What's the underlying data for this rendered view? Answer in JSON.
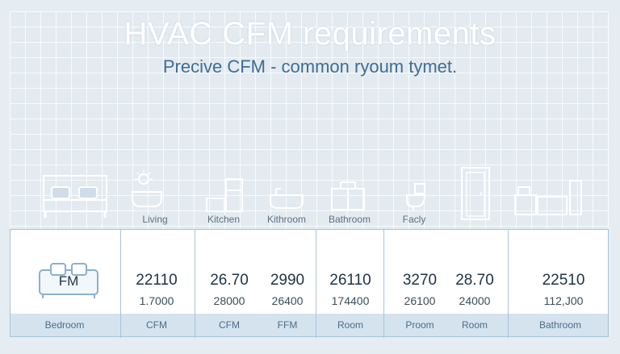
{
  "header": {
    "title": "HVAC CFM  requirements",
    "subtitle": "Precive CFM - common ryoum tymet."
  },
  "icons": [
    {
      "name": "bed-icon",
      "label": ""
    },
    {
      "name": "bathtub-icon",
      "label": "Living"
    },
    {
      "name": "kitchen-icon",
      "label": "Kitchen"
    },
    {
      "name": "bathtub-icon",
      "label": "Kithroom"
    },
    {
      "name": "cabinet-icon",
      "label": "Bathroom"
    },
    {
      "name": "toilet-icon",
      "label": "Facly"
    },
    {
      "name": "door-icon",
      "label": ""
    },
    {
      "name": "office-icon",
      "label": ""
    }
  ],
  "table": {
    "bed_label": "FM",
    "cells": [
      {
        "value": "22110",
        "sub": "1.7000",
        "foot": "CFM"
      },
      {
        "value": "26.70",
        "sub": "28000",
        "foot": "CFM"
      },
      {
        "value": "2990",
        "sub": "26400",
        "foot": "FFM"
      },
      {
        "value": "26110",
        "sub": "174400",
        "foot": "Room"
      },
      {
        "value": "3270",
        "sub": "26100",
        "foot": "Proom"
      },
      {
        "value": "28.70",
        "sub": "24000",
        "foot": "Room"
      },
      {
        "value": "22510",
        "sub": "112,J00",
        "foot": "Bathroom"
      }
    ],
    "first_foot": "Bedroom"
  },
  "colors": {
    "accent": "#3f6d95",
    "border": "#a8c4d8",
    "band": "#d4e3ee"
  }
}
